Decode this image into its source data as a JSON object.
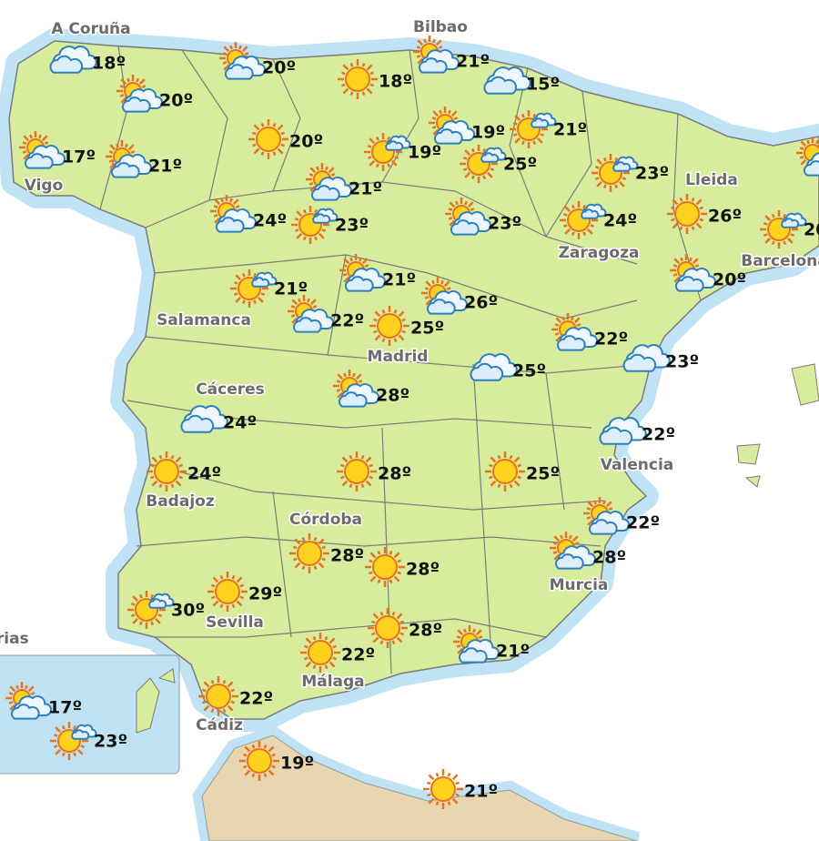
{
  "cities": [
    "A Coruña",
    "Bilbao",
    "Vigo",
    "Lleida",
    "Zaragoza",
    "Barcelona",
    "Salamanca",
    "Madrid",
    "Cáceres",
    "Valencia",
    "Badajoz",
    "Córdoba",
    "Murcia",
    "Sevilla",
    "Málaga",
    "Cádiz",
    "Canarias"
  ],
  "forecasts": [
    "18º",
    "20º",
    "18º",
    "21º",
    "15º",
    "20º",
    "17º",
    "21º",
    "20º",
    "19º",
    "19º",
    "21º",
    "25º",
    "23º",
    "21º",
    "24º",
    "23º",
    "23º",
    "24º",
    "26º",
    "20º",
    "20º",
    "21º",
    "21º",
    "26º",
    "22º",
    "25º",
    "22º",
    "25º",
    "23º",
    "28º",
    "24º",
    "22º",
    "24º",
    "28º",
    "25º",
    "22º",
    "28º",
    "28º",
    "28º",
    "29º",
    "30º",
    "28º",
    "21º",
    "22º",
    "22º",
    "17º",
    "23º",
    "19º",
    "21º"
  ]
}
